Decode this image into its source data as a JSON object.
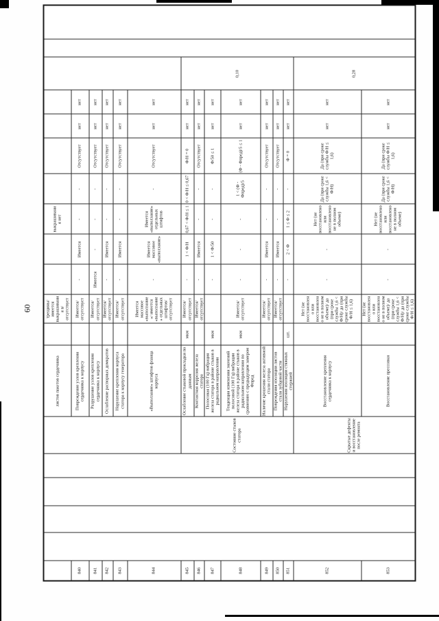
{
  "page": {
    "number": "60"
  },
  "table": {
    "rows": [
      {
        "num": "",
        "defect": "листов пакетов сердечника",
        "unit": "",
        "method": "трещины/ имеется выкрашивания в/ отсутствует",
        "s5": "",
        "s4": "",
        "s3": "выкрашивания нет",
        "s2": "",
        "s1": "",
        "n1": "",
        "n2": ""
      },
      {
        "num": "840",
        "defect": "Повреждение узлов крепления сердечника к корпусу",
        "unit": "",
        "method": "Имеется/ отсутствует",
        "s5": "-",
        "s4": "Имеется",
        "s3": "-",
        "s2": "-",
        "s1": "Отсутствует",
        "n1": "нет",
        "n2": "нет"
      },
      {
        "num": "841",
        "defect": "Разрушение узлов крепления сердечника к корпусу",
        "unit": "",
        "method": "Имеется/ отсутствует",
        "s5": "Имеется",
        "s4": "-",
        "s3": "-",
        "s2": "-",
        "s1": "Отсутствует",
        "n1": "нет",
        "n2": "нет"
      },
      {
        "num": "842",
        "defect": "Ослабление распорных домкратов",
        "unit": "",
        "method": "Имеется/ отсутствует",
        "s5": "-",
        "s4": "Имеется",
        "s3": "-",
        "s2": "-",
        "s1": "Отсутствует",
        "n1": "нет",
        "n2": "нет"
      },
      {
        "num": "843",
        "defect": "Нарушение крепления корпуса статора к корпусу генератора",
        "unit": "",
        "method": "Имеется/ отсутствует",
        "s5": "-",
        "s4": "Имеется",
        "s3": "-",
        "s2": "-",
        "s1": "Отсутствует",
        "n1": "нет",
        "n2": "нет"
      },
      {
        "num": "844",
        "defect": "«Выползание» штифтов фланца корпуса",
        "unit": "",
        "method": "Имеется массовое «выползание»/ имеется «выползание» отдельных штифтов/ отсутствует",
        "s5": "-",
        "s4": "Имеется массовое «выползание»",
        "s3": "Имеется «выползание» отдельных штифтов",
        "s2": "-",
        "s1": "Отсутствует",
        "n1": "нет",
        "n2": "нет"
      },
      {
        "num": "845",
        "defect": "Ослабление стыковой прокладки по данным",
        "unit": "мкм",
        "method": "Имеется/ отсутствует",
        "s5": "-",
        "s4": "1 < Ф/Н",
        "s3": "0,67 < Ф/Н ≤ 1",
        "s2": "0 < Ф/Н ≤ 0,67",
        "s1": "Ф/Н = 0",
        "n1": "нет",
        "n2": "нет"
      },
      {
        "num": "846",
        "defect": "Контактная коррозия железа статора",
        "unit": "",
        "method": "Имеется/ отсутствует",
        "s5": "-",
        "s4": "Имеется",
        "s3": "-",
        "s2": "-",
        "s1": "Отсутствует",
        "n1": "нет",
        "n2": "нет"
      },
      {
        "num": "847",
        "defect": "Полосовая (100 Гц) вибрация железа статора в районе стыков в радиальном направлении",
        "unit": "мкм",
        "method": "",
        "s5": "-",
        "s4": "1 < Ф/50",
        "s3": "-",
        "s2": "-",
        "s1": "Ф/50 ≤ 1",
        "n1": "нет",
        "n2": "нет"
      },
      {
        "num": "848",
        "defect": "Тенденция изменения значений полосовой (100 Гц) вибрации железа статора в районе стыков в радиальном направлении по сравнению с предыдущим замером Фпред",
        "unit": "мкм",
        "method": "Имеется/ отсутствует",
        "s5": "-",
        "s4": "-",
        "s3": "-",
        "s2": "1 < (Ф - Фпред)/5",
        "s1": "(Ф - Фпред)/5 ≤ 1",
        "n1": "нет",
        "n2": "нет"
      },
      {
        "num": "849",
        "defect": "Наличие крошения железа активной стали статора",
        "unit": "",
        "method": "Имеется/ отсутствует",
        "s5": "-",
        "s4": "Имеется",
        "s3": "-",
        "s2": "-",
        "s1": "Отсутствует",
        "n1": "нет",
        "n2": "нет"
      },
      {
        "num": "850",
        "defect": "Повреждения изоляции листов стали зубцовой части",
        "unit": "",
        "method": "Имеется/ отсутствует",
        "s5": "-",
        "s4": "Имеется",
        "s3": "-",
        "s2": "-",
        "s1": "Отсутствует",
        "n1": "нет",
        "n2": "нет"
      },
      {
        "num": "851",
        "defect": "Нарушения изоляции стяжных стержней",
        "unit": "шт.",
        "method": "",
        "s5": "-",
        "s4": "2 < Ф",
        "s3": "1 ≤ Ф ≤ 2",
        "s2": "-",
        "s1": "Ф = 0",
        "n1": "нет",
        "n2": "нет"
      },
      {
        "num": "852",
        "defect": "Восстановление крепления сердечника к корпусу",
        "unit": "",
        "method": "Нет (не восстановлено или восстановлено не в полном объеме)/ да (при сроке службы 1,6 < Ф/Н)/ да (при сроке службы Ф/Н ≤ 1,6)",
        "s5": "-",
        "s4": "-",
        "s3": "Нет (не восстановлено или восстановлено не в полном объеме)",
        "s2": "Да (при сроке службы 1,6 < Ф/Н)",
        "s1": "Да (при сроке службы Ф/Н ≤ 1,6)",
        "n1": "нет",
        "n2": "нет"
      },
      {
        "num": "853",
        "defect": "Восстановление прессовки",
        "unit": "",
        "method": "Нет (не восстановлено или восстановлено не в полном объеме)/ да (при сроке службы 1,6 < Ф/Н)/ да (при сроке службы Ф/Н ≤ 1,6)",
        "s5": "-",
        "s4": "-",
        "s3": "Нет (не восстановлено или восстановлено не в полном объеме)",
        "s2": "Да (при сроке службы 1,6 < Ф/Н)",
        "s1": "Да (при сроке службы Ф/Н ≤ 1,6)",
        "n1": "нет",
        "n2": "нет"
      }
    ],
    "node_groups": [
      {
        "start": 0,
        "span": 6,
        "label": ""
      },
      {
        "start": 6,
        "span": 7,
        "label": "Состояние стыков статора"
      },
      {
        "start": 13,
        "span": 2,
        "label": "Скрытые дефекты и восстановление после ремонта"
      }
    ],
    "weight_groups": [
      {
        "start": 0,
        "span": 6,
        "value": ""
      },
      {
        "start": 6,
        "span": 7,
        "value": "0,10"
      },
      {
        "start": 13,
        "span": 2,
        "value": "0,28"
      }
    ]
  }
}
